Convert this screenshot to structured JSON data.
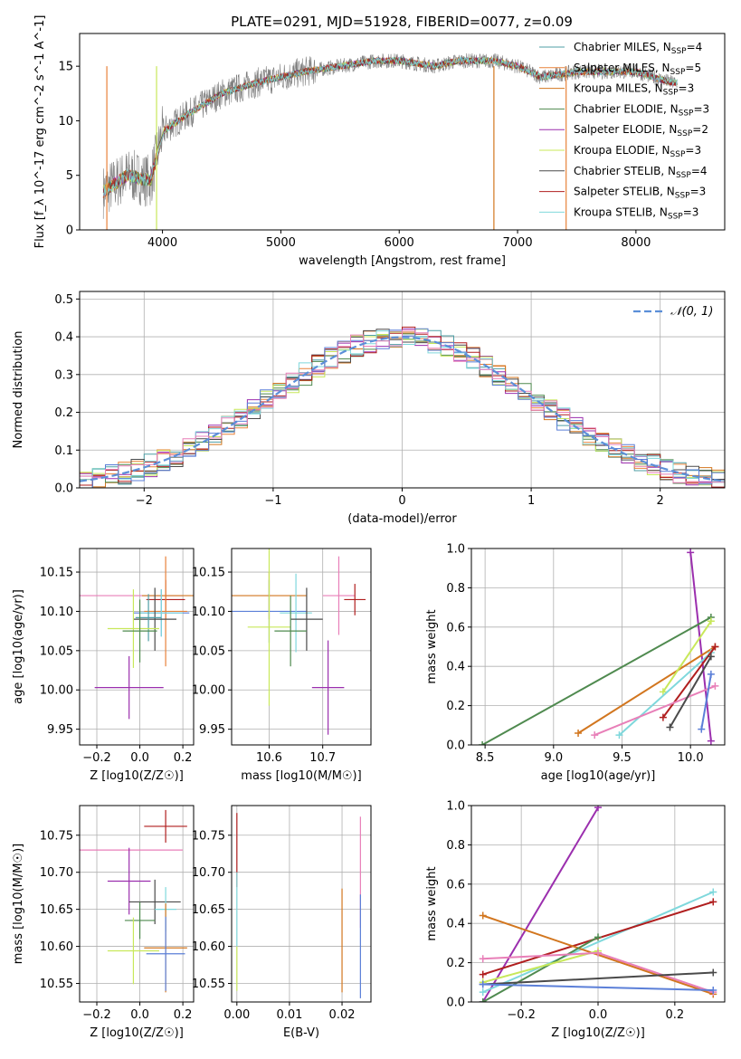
{
  "title": "PLATE=0291, MJD=51928, FIBERID=0077, z=0.09",
  "colors": {
    "chabrier_miles": "#4f9fa6",
    "salpeter_miles": "#e8823a",
    "kroupa_miles": "#d2761f",
    "chabrier_elodie": "#4f8a4f",
    "salpeter_elodie": "#9b2fae",
    "kroupa_elodie": "#c8e85a",
    "chabrier_stelib": "#4a4a4a",
    "salpeter_stelib": "#b01e1e",
    "kroupa_stelib": "#7fd8dc",
    "pink": "#e87fb8",
    "blue": "#5b7fd8",
    "normal": "#5b8fd8",
    "grid": "#b0b0b0"
  },
  "chart_data": [
    {
      "type": "line",
      "panel": "spectrum",
      "xlabel": "wavelength [Angstrom, rest frame]",
      "ylabel": "Flux [f_λ 10^-17 erg cm^-2 s^-1 A^-1]",
      "xlim": [
        3300,
        8750
      ],
      "ylim": [
        0,
        18
      ],
      "xticks": [
        "4000",
        "5000",
        "6000",
        "7000",
        "8000"
      ],
      "yticks": [
        "0",
        "5",
        "10",
        "15"
      ],
      "legend": [
        "Chabrier MILES, N_SSP=4",
        "Salpeter MILES, N_SSP=5",
        "Kroupa MILES, N_SSP=3",
        "Chabrier ELODIE, N_SSP=3",
        "Salpeter ELODIE, N_SSP=2",
        "Kroupa ELODIE, N_SSP=3",
        "Chabrier STELIB, N_SSP=4",
        "Salpeter STELIB, N_SSP=3",
        "Kroupa STELIB, N_SSP=3"
      ],
      "continuum_x": [
        3500,
        3700,
        3900,
        4000,
        4200,
        4500,
        4800,
        5000,
        5200,
        5500,
        5800,
        6000,
        6300,
        6500,
        6800,
        7000,
        7200,
        7500,
        7800,
        8000,
        8300
      ],
      "continuum_y": [
        3.5,
        5.0,
        4.5,
        9.0,
        10.5,
        12.5,
        13.5,
        14.0,
        14.5,
        15.0,
        15.5,
        15.5,
        15.0,
        15.5,
        15.5,
        15.0,
        14.0,
        14.5,
        14.5,
        14.5,
        13.5
      ]
    },
    {
      "type": "bar",
      "panel": "residuals",
      "xlabel": "(data-model)/error",
      "ylabel": "Normed distribution",
      "xlim": [
        -2.5,
        2.5
      ],
      "ylim": [
        0,
        0.52
      ],
      "xticks": [
        "−2",
        "−1",
        "0",
        "1",
        "2"
      ],
      "yticks": [
        "0.0",
        "0.1",
        "0.2",
        "0.3",
        "0.4",
        "0.5"
      ],
      "legend": [
        "𝒩(0, 1)"
      ],
      "bin_width": 0.1
    },
    {
      "type": "scatter",
      "panel": "age_vs_Z",
      "xlabel": "Z [log10(Z/Z☉)]",
      "ylabel": "age [log10(age/yr)]",
      "xlim": [
        -0.28,
        0.25
      ],
      "ylim": [
        9.93,
        10.18
      ],
      "xticks": [
        "−0.2",
        "0.0",
        "0.2"
      ],
      "yticks": [
        "9.95",
        "10.00",
        "10.05",
        "10.10",
        "10.15"
      ],
      "points": [
        {
          "x": -0.05,
          "y": 10.12,
          "xerr": 0.25,
          "yerr": 0.0,
          "c": "pink"
        },
        {
          "x": 0.13,
          "y": 10.12,
          "xerr": 0.12,
          "yerr": 0.0,
          "c": "kroupa_miles"
        },
        {
          "x": 0.12,
          "y": 10.115,
          "xerr": 0.09,
          "yerr": 0.025,
          "c": "salpeter_stelib"
        },
        {
          "x": 0.12,
          "y": 10.1,
          "xerr": 0.1,
          "yerr": 0.07,
          "c": "salpeter_miles"
        },
        {
          "x": 0.1,
          "y": 10.098,
          "xerr": 0.13,
          "yerr": 0.03,
          "c": "blue"
        },
        {
          "x": 0.1,
          "y": 10.098,
          "xerr": 0.1,
          "yerr": 0.03,
          "c": "kroupa_stelib"
        },
        {
          "x": 0.07,
          "y": 10.09,
          "xerr": 0.1,
          "yerr": 0.04,
          "c": "chabrier_stelib"
        },
        {
          "x": 0.04,
          "y": 10.092,
          "xerr": 0.06,
          "yerr": 0.03,
          "c": "chabrier_miles"
        },
        {
          "x": -0.03,
          "y": 10.078,
          "xerr": 0.12,
          "yerr": 0.05,
          "c": "kroupa_elodie"
        },
        {
          "x": 0.0,
          "y": 10.075,
          "xerr": 0.08,
          "yerr": 0.04,
          "c": "chabrier_elodie"
        },
        {
          "x": -0.05,
          "y": 10.003,
          "xerr": 0.16,
          "yerr": 0.04,
          "c": "salpeter_elodie"
        }
      ]
    },
    {
      "type": "scatter",
      "panel": "age_vs_mass",
      "xlabel": "mass [log10(M/M☉)]",
      "ylabel": "",
      "xlim": [
        10.53,
        10.79
      ],
      "ylim": [
        9.93,
        10.18
      ],
      "xticks": [
        "10.6",
        "10.7"
      ],
      "yticks": [
        "9.95",
        "10.00",
        "10.05",
        "10.10",
        "10.15"
      ],
      "points": [
        {
          "x": 10.73,
          "y": 10.12,
          "xerr": 0.03,
          "yerr": 0.05,
          "c": "pink"
        },
        {
          "x": 10.6,
          "y": 10.12,
          "xerr": 0.07,
          "yerr": 0.03,
          "c": "kroupa_miles"
        },
        {
          "x": 10.76,
          "y": 10.115,
          "xerr": 0.02,
          "yerr": 0.02,
          "c": "salpeter_stelib"
        },
        {
          "x": 10.6,
          "y": 10.1,
          "xerr": 0.07,
          "yerr": 0.04,
          "c": "blue"
        },
        {
          "x": 10.65,
          "y": 10.098,
          "xerr": 0.03,
          "yerr": 0.05,
          "c": "kroupa_stelib"
        },
        {
          "x": 10.67,
          "y": 10.09,
          "xerr": 0.03,
          "yerr": 0.04,
          "c": "chabrier_stelib"
        },
        {
          "x": 10.6,
          "y": 10.08,
          "xerr": 0.04,
          "yerr": 0.1,
          "c": "kroupa_elodie"
        },
        {
          "x": 10.64,
          "y": 10.075,
          "xerr": 0.03,
          "yerr": 0.045,
          "c": "chabrier_elodie"
        },
        {
          "x": 10.71,
          "y": 10.003,
          "xerr": 0.03,
          "yerr": 0.06,
          "c": "salpeter_elodie"
        }
      ]
    },
    {
      "type": "line",
      "panel": "weight_vs_age",
      "xlabel": "age [log10(age/yr)]",
      "ylabel": "mass weight",
      "xlim": [
        8.4,
        10.25
      ],
      "ylim": [
        0,
        1
      ],
      "xticks": [
        "8.5",
        "9.0",
        "9.5",
        "10.0"
      ],
      "yticks": [
        "0.0",
        "0.2",
        "0.4",
        "0.6",
        "0.8",
        "1.0"
      ],
      "series": [
        {
          "c": "salpeter_elodie",
          "x": [
            10.0,
            10.15
          ],
          "y": [
            0.98,
            0.02
          ]
        },
        {
          "c": "chabrier_elodie",
          "x": [
            8.48,
            10.15
          ],
          "y": [
            0.0,
            0.65
          ]
        },
        {
          "c": "kroupa_miles",
          "x": [
            9.18,
            10.18
          ],
          "y": [
            0.06,
            0.5
          ]
        },
        {
          "c": "kroupa_elodie",
          "x": [
            9.8,
            10.15
          ],
          "y": [
            0.27,
            0.63
          ]
        },
        {
          "c": "kroupa_stelib",
          "x": [
            9.48,
            10.15
          ],
          "y": [
            0.05,
            0.47
          ]
        },
        {
          "c": "salpeter_stelib",
          "x": [
            9.8,
            10.18
          ],
          "y": [
            0.14,
            0.5
          ]
        },
        {
          "c": "pink",
          "x": [
            9.3,
            10.18
          ],
          "y": [
            0.05,
            0.3
          ]
        },
        {
          "c": "chabrier_stelib",
          "x": [
            9.85,
            10.15
          ],
          "y": [
            0.09,
            0.45
          ]
        },
        {
          "c": "blue",
          "x": [
            10.08,
            10.15
          ],
          "y": [
            0.08,
            0.36
          ]
        }
      ]
    },
    {
      "type": "scatter",
      "panel": "mass_vs_Z",
      "xlabel": "Z [log10(Z/Z☉)]",
      "ylabel": "mass [log10(M/M☉)]",
      "xlim": [
        -0.28,
        0.25
      ],
      "ylim": [
        10.525,
        10.79
      ],
      "xticks": [
        "−0.2",
        "0.0",
        "0.2"
      ],
      "yticks": [
        "10.55",
        "10.60",
        "10.65",
        "10.70",
        "10.75"
      ],
      "points": [
        {
          "x": 0.12,
          "y": 10.762,
          "xerr": 0.1,
          "yerr": 0.022,
          "c": "salpeter_stelib"
        },
        {
          "x": -0.05,
          "y": 10.73,
          "xerr": 0.25,
          "yerr": 0.0,
          "c": "pink"
        },
        {
          "x": -0.05,
          "y": 10.688,
          "xerr": 0.1,
          "yerr": 0.045,
          "c": "salpeter_elodie"
        },
        {
          "x": 0.07,
          "y": 10.66,
          "xerr": 0.12,
          "yerr": 0.03,
          "c": "chabrier_stelib"
        },
        {
          "x": 0.12,
          "y": 10.65,
          "xerr": 0.05,
          "yerr": 0.03,
          "c": "kroupa_stelib"
        },
        {
          "x": 0.0,
          "y": 10.635,
          "xerr": 0.07,
          "yerr": 0.025,
          "c": "chabrier_elodie"
        },
        {
          "x": 0.12,
          "y": 10.598,
          "xerr": 0.1,
          "yerr": 0.06,
          "c": "kroupa_miles"
        },
        {
          "x": -0.03,
          "y": 10.594,
          "xerr": 0.12,
          "yerr": 0.045,
          "c": "kroupa_elodie"
        },
        {
          "x": 0.12,
          "y": 10.59,
          "xerr": 0.09,
          "yerr": 0.05,
          "c": "blue"
        }
      ]
    },
    {
      "type": "scatter",
      "panel": "mass_vs_EBV",
      "xlabel": "E(B-V)",
      "ylabel": "",
      "xlim": [
        -0.001,
        0.0255
      ],
      "ylim": [
        10.525,
        10.79
      ],
      "xticks": [
        "0.00",
        "0.01",
        "0.02"
      ],
      "yticks": [
        "10.55",
        "10.60",
        "10.65",
        "10.70",
        "10.75"
      ],
      "points": [
        {
          "x": 0.0,
          "y": 10.73,
          "xerr": 0.0,
          "yerr": 0.05,
          "c": "salpeter_stelib"
        },
        {
          "x": 0.0,
          "y": 10.65,
          "xerr": 0.0,
          "yerr": 0.05,
          "c": "kroupa_stelib"
        },
        {
          "x": 0.0,
          "y": 10.57,
          "xerr": 0.0,
          "yerr": 0.03,
          "c": "kroupa_elodie"
        },
        {
          "x": 0.0235,
          "y": 10.7,
          "xerr": 0.0,
          "yerr": 0.075,
          "c": "pink"
        },
        {
          "x": 0.0235,
          "y": 10.6,
          "xerr": 0.0,
          "yerr": 0.07,
          "c": "blue"
        },
        {
          "x": 0.02,
          "y": 10.608,
          "xerr": 0.0,
          "yerr": 0.07,
          "c": "kroupa_miles"
        }
      ]
    },
    {
      "type": "line",
      "panel": "weight_vs_Z",
      "xlabel": "Z [log10(Z/Z☉)]",
      "ylabel": "mass weight",
      "xlim": [
        -0.33,
        0.33
      ],
      "ylim": [
        0,
        1
      ],
      "xticks": [
        "−0.2",
        "0.0",
        "0.2"
      ],
      "yticks": [
        "0.0",
        "0.2",
        "0.4",
        "0.6",
        "0.8",
        "1.0"
      ],
      "series": [
        {
          "c": "salpeter_elodie",
          "x": [
            -0.3,
            0.0
          ],
          "y": [
            0.0,
            0.99
          ]
        },
        {
          "c": "kroupa_stelib",
          "x": [
            -0.3,
            0.3
          ],
          "y": [
            0.05,
            0.56
          ]
        },
        {
          "c": "salpeter_stelib",
          "x": [
            -0.3,
            0.3
          ],
          "y": [
            0.14,
            0.51
          ]
        },
        {
          "c": "kroupa_miles",
          "x": [
            -0.3,
            0.3
          ],
          "y": [
            0.44,
            0.04
          ]
        },
        {
          "c": "chabrier_elodie",
          "x": [
            -0.3,
            0.0
          ],
          "y": [
            0.0,
            0.33
          ]
        },
        {
          "c": "kroupa_elodie",
          "x": [
            -0.3,
            0.0
          ],
          "y": [
            0.1,
            0.26
          ]
        },
        {
          "c": "pink",
          "x": [
            -0.3,
            0.0,
            0.3
          ],
          "y": [
            0.22,
            0.25,
            0.05
          ]
        },
        {
          "c": "chabrier_stelib",
          "x": [
            -0.3,
            0.3
          ],
          "y": [
            0.09,
            0.15
          ]
        },
        {
          "c": "blue",
          "x": [
            -0.3,
            0.3
          ],
          "y": [
            0.09,
            0.06
          ]
        }
      ]
    }
  ]
}
